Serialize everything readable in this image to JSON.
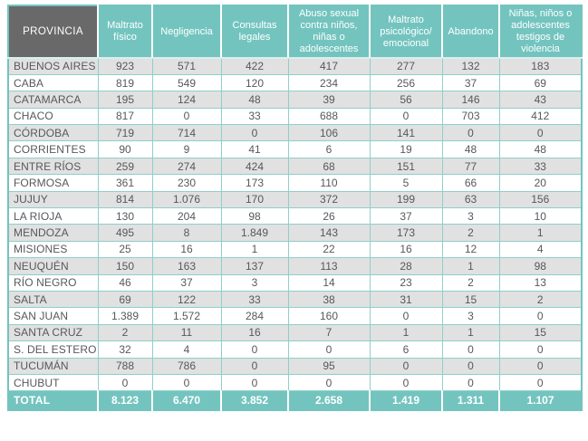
{
  "table": {
    "header": {
      "province_label": "PROVINCIA",
      "columns": [
        "Maltrato físico",
        "Negligencia",
        "Consultas legales",
        "Abuso sexual contra niños, niñas o adolescentes",
        "Maltrato psicológico/ emocional",
        "Abandono",
        "Niñas, niños o adolescentes testigos de violencia"
      ]
    },
    "rows": [
      {
        "province": "BUENOS AIRES",
        "values": [
          "923",
          "571",
          "422",
          "417",
          "277",
          "132",
          "183"
        ]
      },
      {
        "province": "CABA",
        "values": [
          "819",
          "549",
          "120",
          "234",
          "256",
          "37",
          "69"
        ]
      },
      {
        "province": "CATAMARCA",
        "values": [
          "195",
          "124",
          "48",
          "39",
          "56",
          "146",
          "43"
        ]
      },
      {
        "province": "CHACO",
        "values": [
          "817",
          "0",
          "33",
          "688",
          "0",
          "703",
          "412"
        ]
      },
      {
        "province": "CÓRDOBA",
        "values": [
          "719",
          "714",
          "0",
          "106",
          "141",
          "0",
          "0"
        ]
      },
      {
        "province": "CORRIENTES",
        "values": [
          "90",
          "9",
          "41",
          "6",
          "19",
          "48",
          "48"
        ]
      },
      {
        "province": "ENTRE RÍOS",
        "values": [
          "259",
          "274",
          "424",
          "68",
          "151",
          "77",
          "33"
        ]
      },
      {
        "province": "FORMOSA",
        "values": [
          "361",
          "230",
          "173",
          "110",
          "5",
          "66",
          "20"
        ]
      },
      {
        "province": "JUJUY",
        "values": [
          "814",
          "1.076",
          "170",
          "372",
          "199",
          "63",
          "156"
        ]
      },
      {
        "province": "LA RIOJA",
        "values": [
          "130",
          "204",
          "98",
          "26",
          "37",
          "3",
          "10"
        ]
      },
      {
        "province": "MENDOZA",
        "values": [
          "495",
          "8",
          "1.849",
          "143",
          "173",
          "2",
          "1"
        ]
      },
      {
        "province": "MISIONES",
        "values": [
          "25",
          "16",
          "1",
          "22",
          "16",
          "12",
          "4"
        ]
      },
      {
        "province": "NEUQUÉN",
        "values": [
          "150",
          "163",
          "137",
          "113",
          "28",
          "1",
          "98"
        ]
      },
      {
        "province": "RÍO NEGRO",
        "values": [
          "46",
          "37",
          "3",
          "14",
          "23",
          "2",
          "13"
        ]
      },
      {
        "province": "SALTA",
        "values": [
          "69",
          "122",
          "33",
          "38",
          "31",
          "15",
          "2"
        ]
      },
      {
        "province": "SAN JUAN",
        "values": [
          "1.389",
          "1.572",
          "284",
          "160",
          "0",
          "3",
          "0"
        ]
      },
      {
        "province": "SANTA CRUZ",
        "values": [
          "2",
          "11",
          "16",
          "7",
          "1",
          "1",
          "15"
        ]
      },
      {
        "province": "S. DEL ESTERO",
        "values": [
          "32",
          "4",
          "0",
          "0",
          "6",
          "0",
          "0"
        ]
      },
      {
        "province": "TUCUMÁN",
        "values": [
          "788",
          "786",
          "0",
          "95",
          "0",
          "0",
          "0"
        ]
      },
      {
        "province": "CHUBUT",
        "values": [
          "0",
          "0",
          "0",
          "0",
          "0",
          "0",
          "0"
        ]
      }
    ],
    "total": {
      "label": "TOTAL",
      "values": [
        "8.123",
        "6.470",
        "3.852",
        "2.658",
        "1.419",
        "1.311",
        "1.107"
      ]
    }
  },
  "colors": {
    "teal": "#73c4bf",
    "teal_border": "#8fcfca",
    "dark_gray_header": "#696969",
    "row_stripe": "#e1e1e1",
    "cell_text": "#57585a",
    "header_text": "#ffffff"
  },
  "chart_data": {
    "type": "table",
    "title": "",
    "columns": [
      "PROVINCIA",
      "Maltrato físico",
      "Negligencia",
      "Consultas legales",
      "Abuso sexual contra niños, niñas o adolescentes",
      "Maltrato psicológico/emocional",
      "Abandono",
      "Niñas, niños o adolescentes testigos de violencia"
    ],
    "rows": [
      [
        "BUENOS AIRES",
        923,
        571,
        422,
        417,
        277,
        132,
        183
      ],
      [
        "CABA",
        819,
        549,
        120,
        234,
        256,
        37,
        69
      ],
      [
        "CATAMARCA",
        195,
        124,
        48,
        39,
        56,
        146,
        43
      ],
      [
        "CHACO",
        817,
        0,
        33,
        688,
        0,
        703,
        412
      ],
      [
        "CÓRDOBA",
        719,
        714,
        0,
        106,
        141,
        0,
        0
      ],
      [
        "CORRIENTES",
        90,
        9,
        41,
        6,
        19,
        48,
        48
      ],
      [
        "ENTRE RÍOS",
        259,
        274,
        424,
        68,
        151,
        77,
        33
      ],
      [
        "FORMOSA",
        361,
        230,
        173,
        110,
        5,
        66,
        20
      ],
      [
        "JUJUY",
        814,
        1076,
        170,
        372,
        199,
        63,
        156
      ],
      [
        "LA RIOJA",
        130,
        204,
        98,
        26,
        37,
        3,
        10
      ],
      [
        "MENDOZA",
        495,
        8,
        1849,
        143,
        173,
        2,
        1
      ],
      [
        "MISIONES",
        25,
        16,
        1,
        22,
        16,
        12,
        4
      ],
      [
        "NEUQUÉN",
        150,
        163,
        137,
        113,
        28,
        1,
        98
      ],
      [
        "RÍO NEGRO",
        46,
        37,
        3,
        14,
        23,
        2,
        13
      ],
      [
        "SALTA",
        69,
        122,
        33,
        38,
        31,
        15,
        2
      ],
      [
        "SAN JUAN",
        1389,
        1572,
        284,
        160,
        0,
        3,
        0
      ],
      [
        "SANTA CRUZ",
        2,
        11,
        16,
        7,
        1,
        1,
        15
      ],
      [
        "S. DEL ESTERO",
        32,
        4,
        0,
        0,
        6,
        0,
        0
      ],
      [
        "TUCUMÁN",
        788,
        786,
        0,
        95,
        0,
        0,
        0
      ],
      [
        "CHUBUT",
        0,
        0,
        0,
        0,
        0,
        0,
        0
      ]
    ],
    "totals": [
      "TOTAL",
      8123,
      6470,
      3852,
      2658,
      1419,
      1311,
      1107
    ]
  }
}
